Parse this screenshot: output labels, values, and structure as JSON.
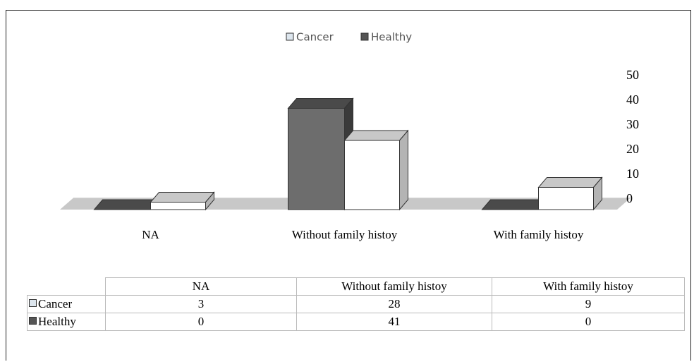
{
  "chart_data": {
    "type": "bar",
    "legend": "top",
    "categories": [
      "NA",
      "Without family histoy",
      "With family histoy"
    ],
    "series": [
      {
        "name": "Cancer",
        "color": "#ffffff",
        "values": [
          3,
          28,
          9
        ]
      },
      {
        "name": "Healthy",
        "color": "#6d6d6d",
        "values": [
          0,
          41,
          0
        ]
      }
    ],
    "ylim": [
      0,
      50
    ],
    "yticks": [
      0,
      10,
      20,
      30,
      40,
      50
    ]
  }
}
